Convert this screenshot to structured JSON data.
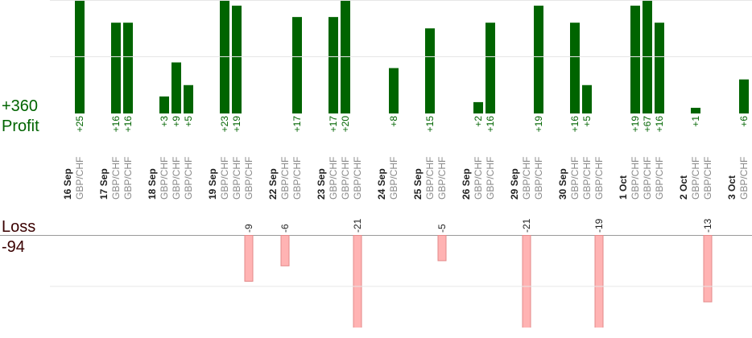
{
  "chart_data": {
    "type": "bar",
    "profit_title": "Profit",
    "profit_total": 360,
    "profit_total_label": "+360",
    "loss_title": "Loss",
    "loss_total": -94,
    "profit_color": "#006400",
    "loss_color": "#ffb3b3",
    "profit_ylim": [
      0,
      20
    ],
    "profit_yticks": [
      10,
      20
    ],
    "loss_ylim": [
      -18,
      0
    ],
    "loss_yticks": [
      -10
    ],
    "grid": true,
    "days": [
      {
        "date": "16 Sep",
        "trades": [
          {
            "name": "GBP/CHF",
            "value": 25,
            "value_label": "+25"
          }
        ]
      },
      {
        "date": "17 Sep",
        "trades": [
          {
            "name": "GBP/CHF",
            "value": 16,
            "value_label": "+16"
          },
          {
            "name": "GBP/CHF",
            "value": 16,
            "value_label": "+16"
          }
        ]
      },
      {
        "date": "18 Sep",
        "trades": [
          {
            "name": "GBP/CHF",
            "value": 3,
            "value_label": "+3"
          },
          {
            "name": "GBP/CHF",
            "value": 9,
            "value_label": "+9"
          },
          {
            "name": "GBP/CHF",
            "value": 5,
            "value_label": "+5"
          }
        ]
      },
      {
        "date": "19 Sep",
        "trades": [
          {
            "name": "GBP/CHF",
            "value": 23,
            "value_label": "+23"
          },
          {
            "name": "GBP/CHF",
            "value": 19,
            "value_label": "+19"
          },
          {
            "name": "GBP/CHF",
            "value": -9
          }
        ]
      },
      {
        "date": "22 Sep",
        "trades": [
          {
            "name": "GBP/CHF",
            "value": -6
          },
          {
            "name": "GBP/CHF",
            "value": 17,
            "value_label": "+17"
          }
        ]
      },
      {
        "date": "23 Sep",
        "trades": [
          {
            "name": "GBP/CHF",
            "value": 17,
            "value_label": "+17"
          },
          {
            "name": "GBP/CHF",
            "value": 20,
            "value_label": "+20"
          },
          {
            "name": "GBP/CHF",
            "value": -21
          }
        ]
      },
      {
        "date": "24 Sep",
        "trades": [
          {
            "name": "GBP/CHF",
            "value": 8,
            "value_label": "+8"
          }
        ]
      },
      {
        "date": "25 Sep",
        "trades": [
          {
            "name": "GBP/CHF",
            "value": 15,
            "value_label": "+15"
          },
          {
            "name": "GBP/CHF",
            "value": -5
          }
        ]
      },
      {
        "date": "26 Sep",
        "trades": [
          {
            "name": "GBP/CHF",
            "value": 2,
            "value_label": "+2"
          },
          {
            "name": "GBP/CHF",
            "value": 16,
            "value_label": "+16"
          }
        ]
      },
      {
        "date": "29 Sep",
        "trades": [
          {
            "name": "GBP/CHF",
            "value": -21
          },
          {
            "name": "GBP/CHF",
            "value": 19,
            "value_label": "+19"
          }
        ]
      },
      {
        "date": "30 Sep",
        "trades": [
          {
            "name": "GBP/CHF",
            "value": 16,
            "value_label": "+16"
          },
          {
            "name": "GBP/CHF",
            "value": 5,
            "value_label": "+5"
          },
          {
            "name": "GBP/CHF",
            "value": -19
          }
        ]
      },
      {
        "date": "1 Oct",
        "trades": [
          {
            "name": "GBP/CHF",
            "value": 19,
            "value_label": "+19"
          },
          {
            "name": "GBP/CHF",
            "value": 67,
            "value_label": "+67"
          },
          {
            "name": "GBP/CHF",
            "value": 16,
            "value_label": "+16"
          }
        ]
      },
      {
        "date": "2 Oct",
        "trades": [
          {
            "name": "GBP/CHF",
            "value": 1,
            "value_label": "+1"
          },
          {
            "name": "GBP/CHF",
            "value": -13
          }
        ]
      },
      {
        "date": "3 Oct",
        "trades": [
          {
            "name": "GBP/CHF",
            "value": 6,
            "value_label": "+6"
          }
        ]
      }
    ]
  }
}
